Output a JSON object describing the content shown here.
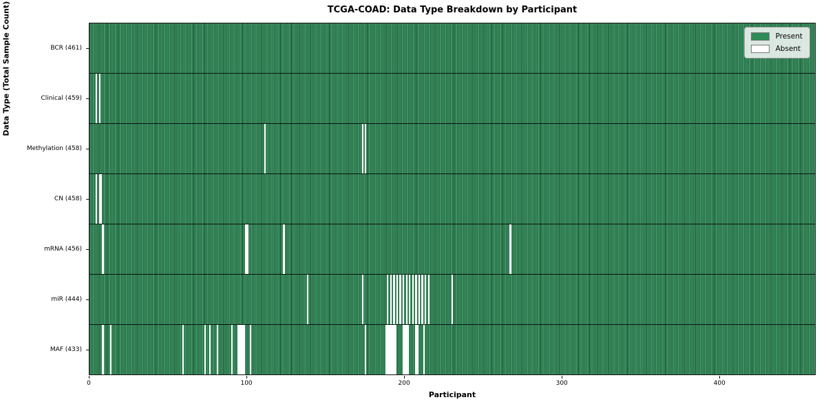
{
  "chart_data": {
    "type": "heatmap",
    "title": "TCGA-COAD: Data Type Breakdown by Participant",
    "xlabel": "Participant",
    "ylabel": "Data Type (Total Sample Count)",
    "n_participants": 461,
    "x_ticks": [
      0,
      100,
      200,
      300,
      400
    ],
    "present_color": "#2e8b57",
    "absent_color": "#ffffff",
    "legend": [
      {
        "label": "Present",
        "color": "#2e8b57"
      },
      {
        "label": "Absent",
        "color": "#ffffff"
      }
    ],
    "legend_position": "upper right",
    "grid": false,
    "rows": [
      {
        "label": "BCR (461)",
        "name": "BCR",
        "present_count": 461,
        "absent_participants": []
      },
      {
        "label": "Clinical (459)",
        "name": "Clinical",
        "present_count": 459,
        "absent_participants": [
          4,
          6
        ]
      },
      {
        "label": "Methylation (458)",
        "name": "Methylation",
        "present_count": 458,
        "absent_participants": [
          111,
          173,
          175
        ]
      },
      {
        "label": "CN (458)",
        "name": "CN",
        "present_count": 458,
        "absent_participants": [
          4,
          6,
          7
        ]
      },
      {
        "label": "mRNA (456)",
        "name": "mRNA",
        "present_count": 456,
        "absent_participants": [
          8,
          99,
          100,
          123,
          267
        ]
      },
      {
        "label": "miR (444)",
        "name": "miR",
        "present_count": 444,
        "absent_participants": [
          138,
          173,
          189,
          191,
          193,
          195,
          197,
          199,
          201,
          203,
          205,
          207,
          209,
          211,
          213,
          215,
          230
        ]
      },
      {
        "label": "MAF (433)",
        "name": "MAF",
        "present_count": 433,
        "absent_participants": [
          8,
          13,
          59,
          73,
          76,
          81,
          90,
          94,
          95,
          96,
          97,
          98,
          102,
          175,
          188,
          189,
          190,
          191,
          192,
          193,
          194,
          199,
          200,
          201,
          202,
          207,
          208,
          212
        ]
      }
    ]
  }
}
